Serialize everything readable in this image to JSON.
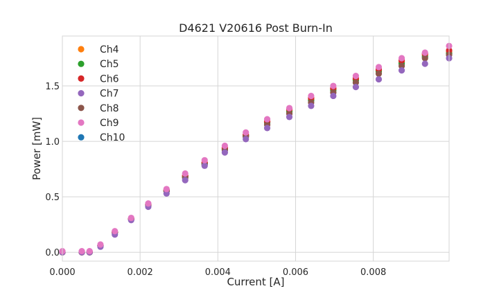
{
  "chart_data": {
    "type": "scatter",
    "title": "D4621 V20616 Post Burn-In",
    "xlabel": "Current [A]",
    "ylabel": "Power [mW]",
    "xlim": [
      0.0,
      0.00995
    ],
    "ylim": [
      -0.08,
      1.95
    ],
    "x_ticks": [
      0.0,
      0.002,
      0.004,
      0.006,
      0.008
    ],
    "x_tick_labels": [
      "0.000",
      "0.002",
      "0.004",
      "0.006",
      "0.008"
    ],
    "y_ticks": [
      0.0,
      0.5,
      1.0,
      1.5
    ],
    "y_tick_labels": [
      "0.0",
      "0.5",
      "1.0",
      "1.5"
    ],
    "grid": true,
    "legend_position": "upper-left",
    "x": [
      0.0,
      0.0005,
      0.0007,
      0.00098,
      0.00135,
      0.00177,
      0.00221,
      0.00268,
      0.00316,
      0.00366,
      0.00418,
      0.00472,
      0.00527,
      0.00584,
      0.0064,
      0.00697,
      0.00755,
      0.00814,
      0.00873,
      0.00933,
      0.00995
    ],
    "series": [
      {
        "name": "Ch4",
        "color": "#ff7f0e",
        "values": [
          0.0,
          0.0,
          0.0,
          0.06,
          0.18,
          0.3,
          0.43,
          0.56,
          0.69,
          0.81,
          0.94,
          1.06,
          1.18,
          1.28,
          1.38,
          1.47,
          1.56,
          1.64,
          1.72,
          1.78,
          1.81
        ]
      },
      {
        "name": "Ch5",
        "color": "#2ca02c",
        "values": [
          0.0,
          0.0,
          0.0,
          0.06,
          0.18,
          0.3,
          0.43,
          0.55,
          0.68,
          0.8,
          0.93,
          1.05,
          1.17,
          1.27,
          1.37,
          1.46,
          1.55,
          1.63,
          1.7,
          1.76,
          1.79
        ]
      },
      {
        "name": "Ch6",
        "color": "#d62728",
        "values": [
          0.0,
          0.0,
          0.0,
          0.06,
          0.18,
          0.3,
          0.43,
          0.56,
          0.69,
          0.81,
          0.94,
          1.06,
          1.18,
          1.29,
          1.39,
          1.48,
          1.57,
          1.65,
          1.73,
          1.79,
          1.82
        ]
      },
      {
        "name": "Ch7",
        "color": "#9467bd",
        "values": [
          0.0,
          0.0,
          0.0,
          0.05,
          0.16,
          0.29,
          0.41,
          0.53,
          0.65,
          0.78,
          0.9,
          1.02,
          1.12,
          1.22,
          1.32,
          1.41,
          1.49,
          1.56,
          1.64,
          1.7,
          1.75
        ]
      },
      {
        "name": "Ch8",
        "color": "#8c564b",
        "values": [
          0.0,
          0.0,
          0.0,
          0.06,
          0.18,
          0.3,
          0.42,
          0.55,
          0.67,
          0.79,
          0.92,
          1.04,
          1.15,
          1.25,
          1.35,
          1.44,
          1.53,
          1.61,
          1.68,
          1.75,
          1.78
        ]
      },
      {
        "name": "Ch9",
        "color": "#e377c2",
        "values": [
          0.01,
          0.01,
          0.01,
          0.07,
          0.19,
          0.31,
          0.44,
          0.57,
          0.71,
          0.83,
          0.96,
          1.08,
          1.2,
          1.3,
          1.41,
          1.5,
          1.59,
          1.67,
          1.75,
          1.8,
          1.86
        ]
      },
      {
        "name": "Ch10",
        "color": "#1f77b4",
        "values": [
          0.0,
          0.0,
          0.0,
          0.06,
          0.18,
          0.3,
          0.43,
          0.56,
          0.68,
          0.8,
          0.93,
          1.05,
          1.17,
          1.27,
          1.37,
          1.47,
          1.56,
          1.64,
          1.71,
          1.77,
          1.8
        ]
      }
    ],
    "draw_order": [
      6,
      0,
      1,
      2,
      4,
      3,
      5
    ]
  }
}
